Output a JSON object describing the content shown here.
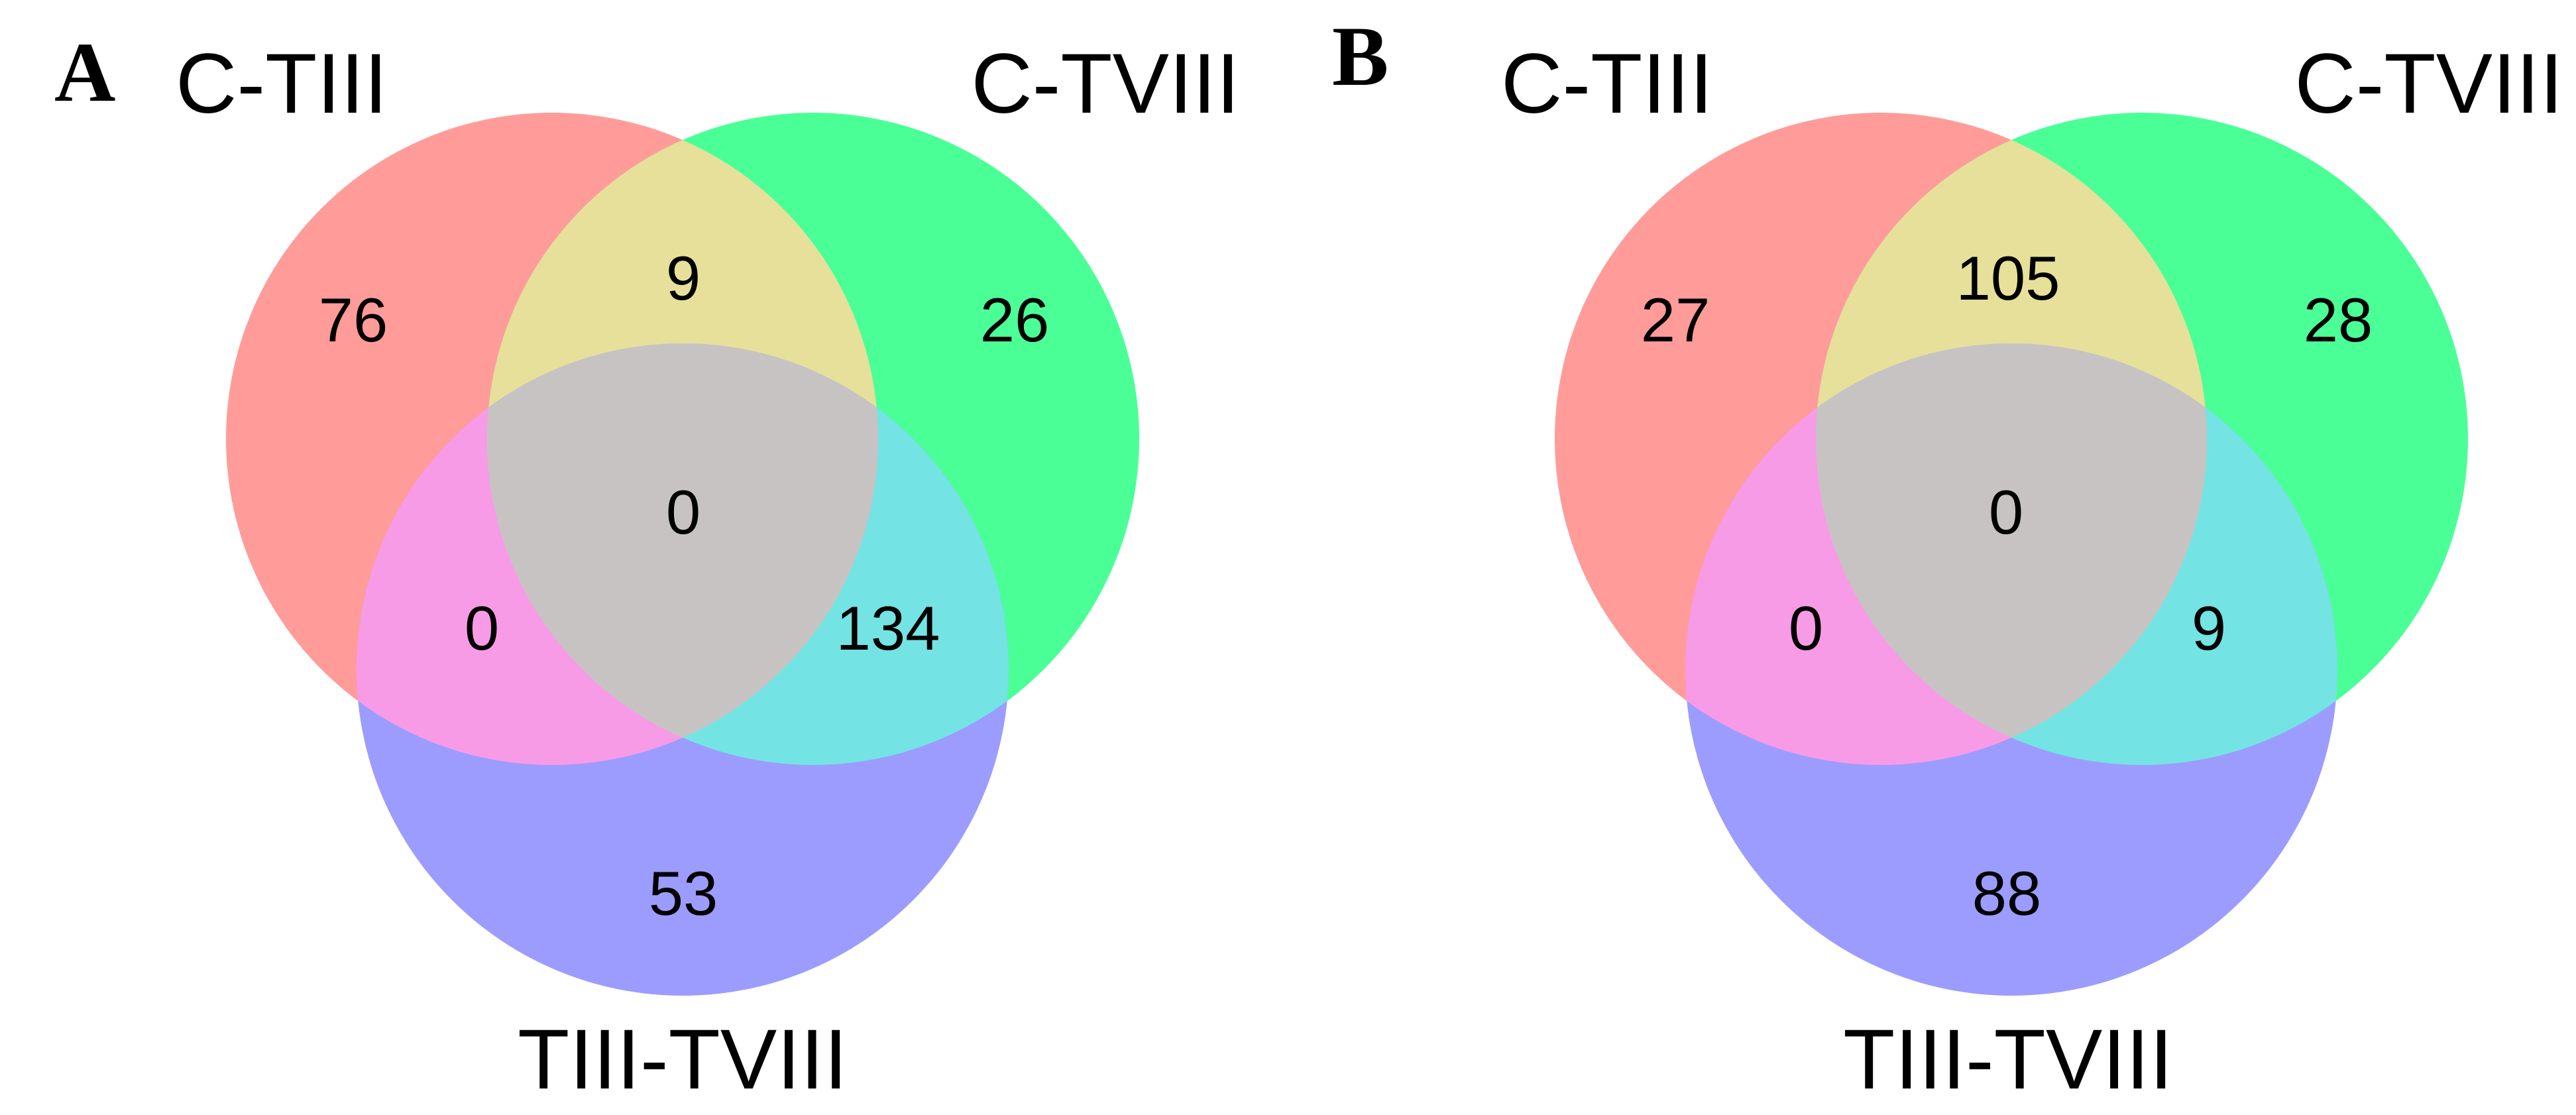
{
  "colors": {
    "set_a": "#ff8080",
    "set_b": "#00ff7f",
    "set_c": "#8080ff",
    "region_only_a": "#ff9c9a",
    "region_only_b": "#4bff97",
    "region_only_c": "#9c9cff",
    "region_ab": "#e6e09b",
    "region_ac": "#f89be6",
    "region_bc": "#74e3e3",
    "region_abc": "#c8c3c3"
  },
  "panels": [
    {
      "letter": "A",
      "set_labels": {
        "a": "C-TIII",
        "b": "C-TVIII",
        "c": "TIII-TVIII"
      },
      "counts": {
        "only_a": "76",
        "only_b": "26",
        "only_c": "53",
        "ab": "9",
        "ac": "0",
        "bc": "134",
        "abc": "0"
      }
    },
    {
      "letter": "B",
      "set_labels": {
        "a": "C-TIII",
        "b": "C-TVIII",
        "c": "TIII-TVIII"
      },
      "counts": {
        "only_a": "27",
        "only_b": "28",
        "only_c": "88",
        "ab": "105",
        "ac": "0",
        "bc": "9",
        "abc": "0"
      }
    }
  ]
}
